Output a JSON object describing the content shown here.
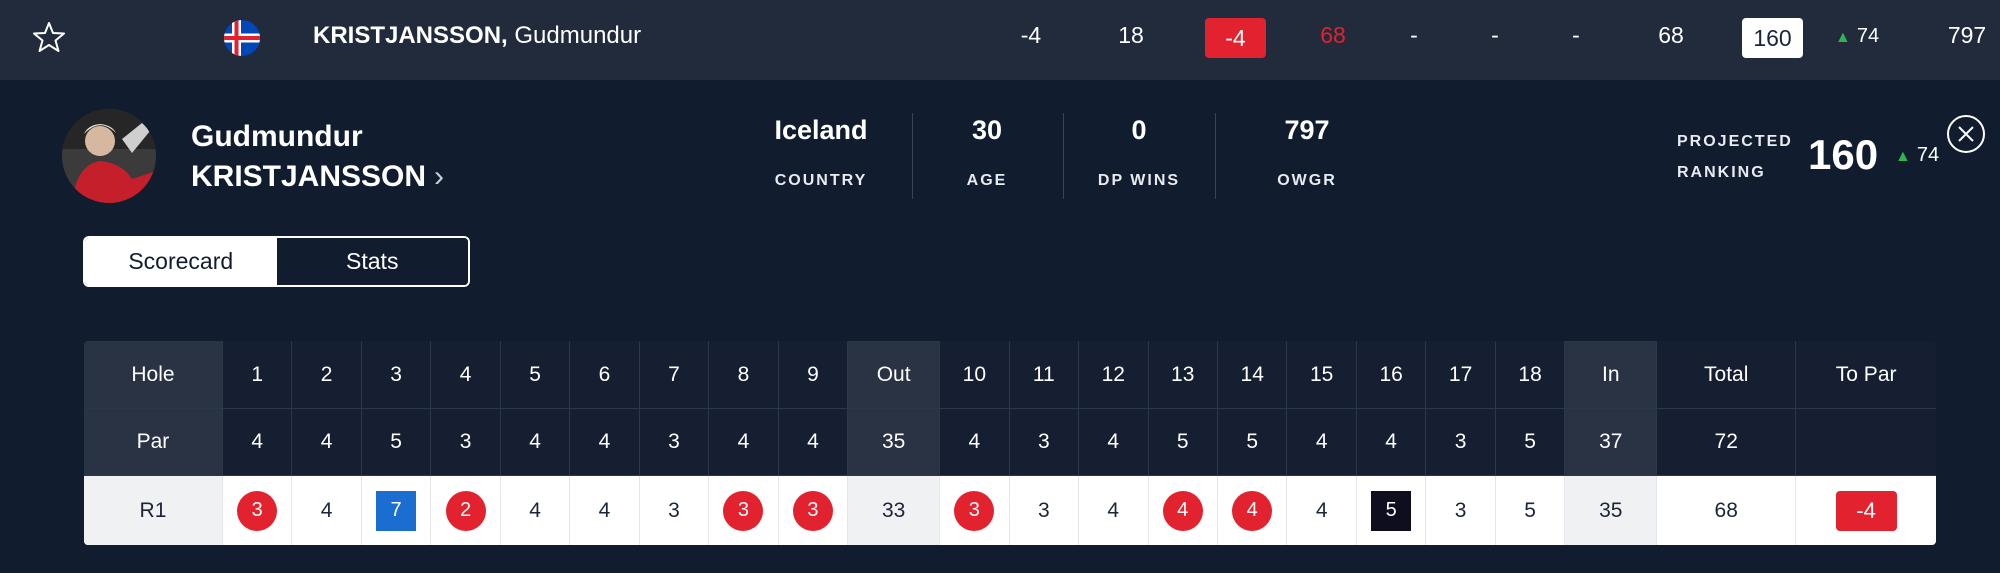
{
  "top_row": {
    "last_name": "KRISTJANSSON,",
    "first_name": "Gudmundur",
    "to_par": "-4",
    "thru": "18",
    "today": "-4",
    "r1": "68",
    "r2": "-",
    "r3": "-",
    "r4": "-",
    "total": "68",
    "projected_ranking": "160",
    "ranking_move": "74",
    "owgr": "797"
  },
  "profile": {
    "first_name": "Gudmundur",
    "last_name": "KRISTJANSSON",
    "stats": [
      {
        "value": "Iceland",
        "label": "COUNTRY"
      },
      {
        "value": "30",
        "label": "AGE"
      },
      {
        "value": "0",
        "label": "DP WINS"
      },
      {
        "value": "797",
        "label": "OWGR"
      }
    ],
    "projected_label_1": "PROJECTED",
    "projected_label_2": "RANKING",
    "projected_value": "160",
    "projected_move": "74"
  },
  "tabs": [
    {
      "label": "Scorecard",
      "active": true
    },
    {
      "label": "Stats",
      "active": false
    }
  ],
  "scorecard": {
    "header": [
      "Hole",
      "1",
      "2",
      "3",
      "4",
      "5",
      "6",
      "7",
      "8",
      "9",
      "Out",
      "10",
      "11",
      "12",
      "13",
      "14",
      "15",
      "16",
      "17",
      "18",
      "In",
      "Total",
      "To Par"
    ],
    "par": [
      "Par",
      "4",
      "4",
      "5",
      "3",
      "4",
      "4",
      "3",
      "4",
      "4",
      "35",
      "4",
      "3",
      "4",
      "5",
      "5",
      "4",
      "4",
      "3",
      "5",
      "37",
      "72",
      ""
    ],
    "round": [
      "R1",
      "3",
      "4",
      "7",
      "2",
      "4",
      "4",
      "3",
      "3",
      "3",
      "33",
      "3",
      "3",
      "4",
      "4",
      "4",
      "4",
      "5",
      "3",
      "5",
      "35",
      "68",
      "-4"
    ],
    "round_marks": [
      "",
      "birdie",
      "",
      "double",
      "birdie",
      "",
      "",
      "",
      "birdie",
      "birdie",
      "",
      "birdie",
      "",
      "",
      "birdie",
      "birdie",
      "",
      "bogey",
      "",
      "",
      "",
      "",
      "topar"
    ]
  },
  "colors": {
    "under_par": "#e2222e",
    "double_bogey": "#1b6ed1",
    "bogey": "#0e0e1e",
    "move_up": "#2fb44e",
    "background": "#111c2e",
    "top_row": "#222b3c"
  }
}
